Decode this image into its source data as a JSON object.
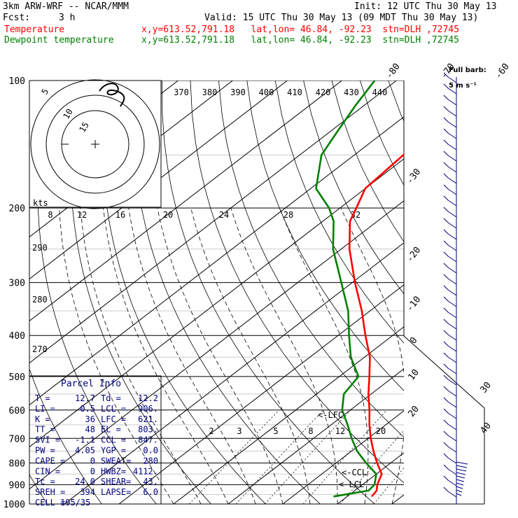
{
  "header": {
    "model": "3km ARW-WRF -- NCAR/MMM",
    "init": "Init: 12 UTC Thu 30 May 13",
    "fcst_label": "Fcst:",
    "fcst_value": "3 h",
    "valid": "Valid: 15 UTC Thu 30 May 13 (09 MDT Thu 30 May 13)",
    "temp_label": "Temperature",
    "dew_label": "Dewpoint temperature",
    "temp_info": "x,y=613.52,791.18   lat,lon= 46.84, -92.23  stn=DLH ,72745",
    "dew_info": "x,y=613.52,791.18   lat,lon= 46.84, -92.23  stn=DLH ,72745",
    "barb_legend_1": "Full barb:",
    "barb_legend_2": "5 m s⁻¹"
  },
  "colors": {
    "temperature": "#ff0000",
    "dewpoint": "#008000",
    "barbs": "#000080",
    "grid": "#000000"
  },
  "chart_data": {
    "type": "line",
    "x_axis": "temperature (°C)",
    "y_axis": "pressure (hPa)",
    "y_scale": "log",
    "ylim": [
      1000,
      100
    ],
    "pressure_ticks": [
      100,
      200,
      300,
      400,
      500,
      600,
      700,
      800,
      900,
      1000
    ],
    "pressure_tick_labels": [
      "100",
      "200",
      "300",
      "400",
      "500",
      "600",
      "700",
      "800",
      "900",
      "1000"
    ],
    "top_isotherm_labels": [
      "-80",
      "-70",
      "-60",
      "-50",
      "-40"
    ],
    "side_isotherm_labels": [
      "-30",
      "-20",
      "-10",
      "0",
      "10",
      "20",
      "30",
      "40"
    ],
    "theta_labels": [
      "370",
      "380",
      "390",
      "400",
      "410",
      "420",
      "430",
      "440"
    ],
    "theta_left_labels": [
      "290",
      "280",
      "270"
    ],
    "mixing_ratio_labels": [
      "2",
      "3",
      "5",
      "8",
      "12",
      "20"
    ],
    "series": [
      {
        "name": "Temperature",
        "p": [
          960,
          930,
          900,
          850,
          800,
          750,
          700,
          650,
          600,
          550,
          500,
          450,
          400,
          350,
          300,
          250,
          215,
          200,
          180,
          150,
          130,
          115,
          100
        ],
        "t": [
          14.5,
          14.0,
          12.7,
          11.0,
          7.5,
          4.0,
          0.5,
          -3.0,
          -6.5,
          -10.5,
          -14.5,
          -19.0,
          -25.0,
          -31.5,
          -39.5,
          -48.5,
          -55.0,
          -57.0,
          -60.0,
          -61.0,
          -62.5,
          -63.5,
          -64.5
        ]
      },
      {
        "name": "Dewpoint temperature",
        "p": [
          960,
          930,
          900,
          850,
          800,
          750,
          700,
          650,
          600,
          550,
          500,
          450,
          400,
          350,
          300,
          250,
          215,
          200,
          180,
          150,
          130,
          115,
          100
        ],
        "t": [
          7.5,
          12.5,
          12.2,
          10.0,
          5.5,
          1.0,
          -3.0,
          -7.0,
          -11.5,
          -15.0,
          -16.5,
          -22.5,
          -28.0,
          -34.0,
          -42.0,
          -51.5,
          -58.0,
          -62.0,
          -69.0,
          -76.0,
          -79.0,
          -81.5,
          -84.0
        ]
      }
    ],
    "annotations": [
      "<-LFC",
      "<-CCL",
      "<-LCL"
    ],
    "hodograph": {
      "rings_label": [
        "5",
        "10",
        "15"
      ],
      "units_label": "kts",
      "axis_labels": [
        "8",
        "12",
        "16",
        "20",
        "24",
        "28",
        "32"
      ]
    }
  },
  "parcel": {
    "title": "Parcel Info",
    "rows": [
      [
        "T  =",
        "12.7",
        "Td =",
        "12.2"
      ],
      [
        "LI =",
        "0.5",
        "LCL =",
        "906."
      ],
      [
        "K  =",
        "36",
        "LFC =",
        "621."
      ],
      [
        "TT =",
        "48",
        "EL =",
        "803."
      ],
      [
        "SVI =",
        "-1.1",
        "CCL =",
        "847."
      ],
      [
        "PW =",
        "4.05",
        "YGP =",
        "0.0"
      ],
      [
        "CAPE =",
        "0",
        "SWEAT=",
        "280"
      ],
      [
        "CIN =",
        "0",
        "HWBZ=",
        "4112."
      ],
      [
        "Tc =",
        "24.0",
        "SHEAR=",
        "43."
      ],
      [
        "SREH =",
        "394",
        "LAPSE=",
        "6.0"
      ],
      [
        "CELL =",
        "195/35",
        "",
        ""
      ]
    ]
  }
}
